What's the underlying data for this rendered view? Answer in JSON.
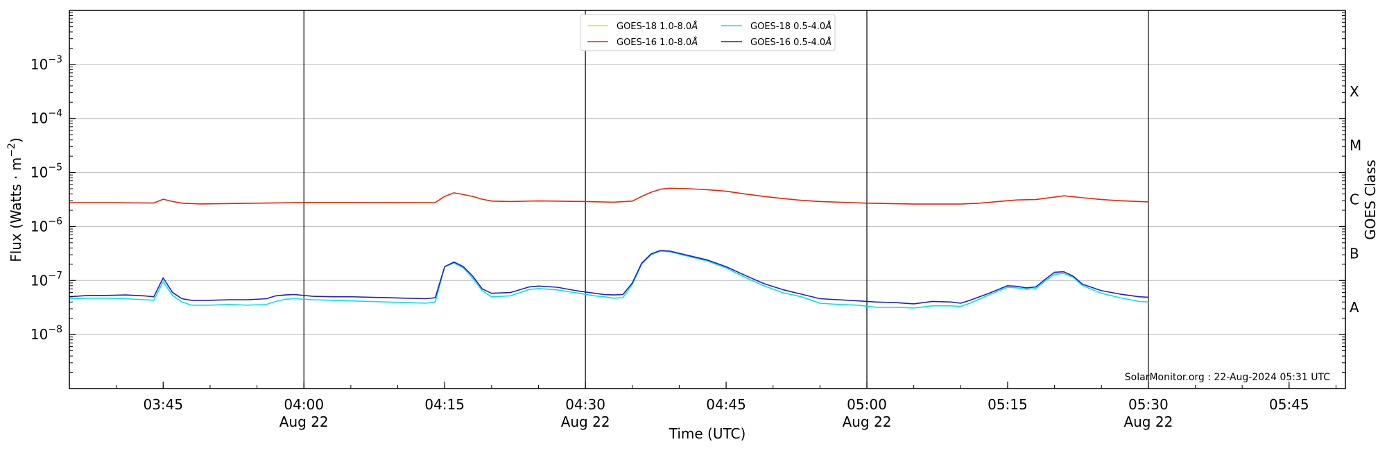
{
  "chart_data": {
    "type": "line",
    "xlabel": "Time (UTC)",
    "ylabel": "Flux (Watts · m",
    "ylabel_sup": "−2",
    "ylabel_tail": ")",
    "right_label": "GOES Class",
    "y_scale": "log",
    "ylim": [
      1e-09,
      0.01
    ],
    "xlim_minutes_since_0335": [
      0,
      136
    ],
    "x_start": "2024-08-22 03:35 UTC",
    "grid": "horizontal at decades",
    "legend_position": "top-center",
    "watermark": "SolarMonitor.org : 22-Aug-2024 05:31 UTC",
    "y_ticks": [
      {
        "exp": -3,
        "base": "10",
        "sup": "−3"
      },
      {
        "exp": -4,
        "base": "10",
        "sup": "−4"
      },
      {
        "exp": -5,
        "base": "10",
        "sup": "−5"
      },
      {
        "exp": -6,
        "base": "10",
        "sup": "−6"
      },
      {
        "exp": -7,
        "base": "10",
        "sup": "−7"
      },
      {
        "exp": -8,
        "base": "10",
        "sup": "−8"
      }
    ],
    "x_ticks": [
      {
        "min": 10,
        "label": "03:45",
        "date": ""
      },
      {
        "min": 25,
        "label": "04:00",
        "date": "Aug 22"
      },
      {
        "min": 40,
        "label": "04:15",
        "date": ""
      },
      {
        "min": 55,
        "label": "04:30",
        "date": "Aug 22"
      },
      {
        "min": 70,
        "label": "04:45",
        "date": ""
      },
      {
        "min": 85,
        "label": "05:00",
        "date": "Aug 22"
      },
      {
        "min": 100,
        "label": "05:15",
        "date": ""
      },
      {
        "min": 115,
        "label": "05:30",
        "date": "Aug 22"
      },
      {
        "min": 130,
        "label": "05:45",
        "date": ""
      }
    ],
    "vlines_min": [
      25,
      55,
      85,
      115
    ],
    "goes_classes": [
      {
        "label": "X",
        "exp": -3.5
      },
      {
        "label": "M",
        "exp": -4.5
      },
      {
        "label": "C",
        "exp": -5.5
      },
      {
        "label": "B",
        "exp": -6.5
      },
      {
        "label": "A",
        "exp": -7.5
      }
    ],
    "series": [
      {
        "name": "GOES-18 1.0-8.0",
        "name_suffix": "Å",
        "color": "#ffd700",
        "points": []
      },
      {
        "name": "GOES-18 0.5-4.0",
        "name_suffix": "Å",
        "color": "#00e5ee",
        "points": [
          [
            0,
            4.6e-08
          ],
          [
            2,
            4.7e-08
          ],
          [
            4,
            4.7e-08
          ],
          [
            6,
            4.6e-08
          ],
          [
            8,
            4.4e-08
          ],
          [
            9,
            4.3e-08
          ],
          [
            10,
            9.5e-08
          ],
          [
            11,
            5.3e-08
          ],
          [
            12,
            4e-08
          ],
          [
            13,
            3.5e-08
          ],
          [
            15,
            3.5e-08
          ],
          [
            17,
            3.6e-08
          ],
          [
            19,
            3.5e-08
          ],
          [
            21,
            3.6e-08
          ],
          [
            22,
            4.1e-08
          ],
          [
            23,
            4.5e-08
          ],
          [
            24,
            4.6e-08
          ],
          [
            26,
            4.4e-08
          ],
          [
            28,
            4.3e-08
          ],
          [
            30,
            4.2e-08
          ],
          [
            32,
            4.1e-08
          ],
          [
            34,
            4e-08
          ],
          [
            36,
            3.9e-08
          ],
          [
            38,
            3.8e-08
          ],
          [
            39,
            4e-08
          ],
          [
            40,
            1.8e-07
          ],
          [
            41,
            2.1e-07
          ],
          [
            42,
            1.7e-07
          ],
          [
            43,
            1.1e-07
          ],
          [
            44,
            6.5e-08
          ],
          [
            45,
            5e-08
          ],
          [
            47,
            5.2e-08
          ],
          [
            49,
            6.8e-08
          ],
          [
            50,
            7.1e-08
          ],
          [
            52,
            6.7e-08
          ],
          [
            54,
            5.9e-08
          ],
          [
            56,
            5.2e-08
          ],
          [
            57,
            5e-08
          ],
          [
            58,
            4.7e-08
          ],
          [
            59,
            4.8e-08
          ],
          [
            60,
            8.5e-08
          ],
          [
            61,
            2e-07
          ],
          [
            62,
            3e-07
          ],
          [
            63,
            3.5e-07
          ],
          [
            64,
            3.4e-07
          ],
          [
            66,
            2.8e-07
          ],
          [
            68,
            2.3e-07
          ],
          [
            70,
            1.7e-07
          ],
          [
            72,
            1.15e-07
          ],
          [
            74,
            8e-08
          ],
          [
            76,
            6e-08
          ],
          [
            78,
            5e-08
          ],
          [
            80,
            3.8e-08
          ],
          [
            82,
            3.6e-08
          ],
          [
            84,
            3.5e-08
          ],
          [
            86,
            3.2e-08
          ],
          [
            88,
            3.2e-08
          ],
          [
            90,
            3.1e-08
          ],
          [
            92,
            3.4e-08
          ],
          [
            94,
            3.4e-08
          ],
          [
            95,
            3.3e-08
          ],
          [
            96,
            3.8e-08
          ],
          [
            98,
            5.4e-08
          ],
          [
            100,
            7.5e-08
          ],
          [
            101,
            7.3e-08
          ],
          [
            102,
            6.9e-08
          ],
          [
            103,
            7.1e-08
          ],
          [
            104,
            9.8e-08
          ],
          [
            105,
            1.3e-07
          ],
          [
            106,
            1.35e-07
          ],
          [
            107,
            1.15e-07
          ],
          [
            108,
            8e-08
          ],
          [
            110,
            5.8e-08
          ],
          [
            112,
            4.8e-08
          ],
          [
            114,
            4.1e-08
          ],
          [
            115,
            4e-08
          ]
        ]
      },
      {
        "name": "GOES-16 1.0-8.0",
        "name_suffix": "Å",
        "color": "#ee2200",
        "points": [
          [
            0,
            2.75e-06
          ],
          [
            5,
            2.75e-06
          ],
          [
            9,
            2.72e-06
          ],
          [
            10,
            3.2e-06
          ],
          [
            11,
            2.9e-06
          ],
          [
            12,
            2.7e-06
          ],
          [
            14,
            2.62e-06
          ],
          [
            20,
            2.7e-06
          ],
          [
            25,
            2.78e-06
          ],
          [
            30,
            2.78e-06
          ],
          [
            35,
            2.76e-06
          ],
          [
            39,
            2.78e-06
          ],
          [
            40,
            3.6e-06
          ],
          [
            41,
            4.2e-06
          ],
          [
            42,
            3.9e-06
          ],
          [
            43,
            3.6e-06
          ],
          [
            44,
            3.2e-06
          ],
          [
            45,
            2.95e-06
          ],
          [
            47,
            2.9e-06
          ],
          [
            50,
            2.97e-06
          ],
          [
            55,
            2.9e-06
          ],
          [
            58,
            2.82e-06
          ],
          [
            60,
            2.95e-06
          ],
          [
            61,
            3.6e-06
          ],
          [
            62,
            4.3e-06
          ],
          [
            63,
            4.9e-06
          ],
          [
            64,
            5.1e-06
          ],
          [
            66,
            5e-06
          ],
          [
            68,
            4.8e-06
          ],
          [
            70,
            4.5e-06
          ],
          [
            72,
            4e-06
          ],
          [
            74,
            3.6e-06
          ],
          [
            76,
            3.3e-06
          ],
          [
            78,
            3.05e-06
          ],
          [
            80,
            2.9e-06
          ],
          [
            85,
            2.7e-06
          ],
          [
            90,
            2.6e-06
          ],
          [
            95,
            2.6e-06
          ],
          [
            97,
            2.7e-06
          ],
          [
            99,
            2.9e-06
          ],
          [
            101,
            3.1e-06
          ],
          [
            103,
            3.15e-06
          ],
          [
            105,
            3.5e-06
          ],
          [
            106,
            3.7e-06
          ],
          [
            108,
            3.4e-06
          ],
          [
            110,
            3.15e-06
          ],
          [
            112,
            3e-06
          ],
          [
            115,
            2.85e-06
          ]
        ]
      },
      {
        "name": "GOES-16 0.5-4.0",
        "name_suffix": "Å",
        "color": "#1e1ecc",
        "points": [
          [
            0,
            5e-08
          ],
          [
            2,
            5.3e-08
          ],
          [
            4,
            5.3e-08
          ],
          [
            6,
            5.4e-08
          ],
          [
            8,
            5.2e-08
          ],
          [
            9,
            5e-08
          ],
          [
            10,
            1.12e-07
          ],
          [
            11,
            6e-08
          ],
          [
            12,
            4.6e-08
          ],
          [
            13,
            4.3e-08
          ],
          [
            15,
            4.3e-08
          ],
          [
            17,
            4.4e-08
          ],
          [
            19,
            4.4e-08
          ],
          [
            21,
            4.6e-08
          ],
          [
            22,
            5.2e-08
          ],
          [
            23,
            5.4e-08
          ],
          [
            24,
            5.5e-08
          ],
          [
            26,
            5.1e-08
          ],
          [
            28,
            5e-08
          ],
          [
            30,
            5e-08
          ],
          [
            32,
            4.9e-08
          ],
          [
            34,
            4.8e-08
          ],
          [
            36,
            4.7e-08
          ],
          [
            38,
            4.6e-08
          ],
          [
            39,
            4.8e-08
          ],
          [
            40,
            1.8e-07
          ],
          [
            41,
            2.2e-07
          ],
          [
            42,
            1.8e-07
          ],
          [
            43,
            1.2e-07
          ],
          [
            44,
            7e-08
          ],
          [
            45,
            5.8e-08
          ],
          [
            47,
            6e-08
          ],
          [
            49,
            7.6e-08
          ],
          [
            50,
            7.9e-08
          ],
          [
            52,
            7.5e-08
          ],
          [
            54,
            6.5e-08
          ],
          [
            56,
            5.8e-08
          ],
          [
            57,
            5.5e-08
          ],
          [
            58,
            5.4e-08
          ],
          [
            59,
            5.5e-08
          ],
          [
            60,
            9e-08
          ],
          [
            61,
            2.1e-07
          ],
          [
            62,
            3.1e-07
          ],
          [
            63,
            3.6e-07
          ],
          [
            64,
            3.5e-07
          ],
          [
            66,
            2.9e-07
          ],
          [
            68,
            2.4e-07
          ],
          [
            70,
            1.8e-07
          ],
          [
            72,
            1.25e-07
          ],
          [
            74,
            8.8e-08
          ],
          [
            76,
            6.8e-08
          ],
          [
            78,
            5.6e-08
          ],
          [
            80,
            4.6e-08
          ],
          [
            82,
            4.4e-08
          ],
          [
            84,
            4.2e-08
          ],
          [
            86,
            4e-08
          ],
          [
            88,
            3.9e-08
          ],
          [
            90,
            3.7e-08
          ],
          [
            92,
            4.1e-08
          ],
          [
            94,
            4e-08
          ],
          [
            95,
            3.8e-08
          ],
          [
            96,
            4.3e-08
          ],
          [
            98,
            5.8e-08
          ],
          [
            100,
            8e-08
          ],
          [
            101,
            7.8e-08
          ],
          [
            102,
            7.3e-08
          ],
          [
            103,
            7.6e-08
          ],
          [
            104,
            1.05e-07
          ],
          [
            105,
            1.42e-07
          ],
          [
            106,
            1.45e-07
          ],
          [
            107,
            1.2e-07
          ],
          [
            108,
            8.5e-08
          ],
          [
            110,
            6.5e-08
          ],
          [
            112,
            5.6e-08
          ],
          [
            114,
            5e-08
          ],
          [
            115,
            4.9e-08
          ]
        ]
      }
    ],
    "legend_layout": [
      {
        "series": 0,
        "col": 0,
        "row": 0
      },
      {
        "series": 1,
        "col": 1,
        "row": 0
      },
      {
        "series": 2,
        "col": 0,
        "row": 1
      },
      {
        "series": 3,
        "col": 1,
        "row": 1
      }
    ]
  }
}
